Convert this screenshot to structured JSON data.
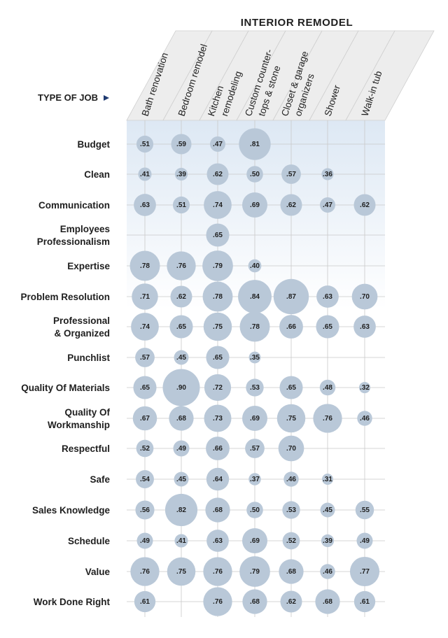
{
  "chart_data": {
    "type": "bubble-matrix",
    "title": "INTERIOR REMODEL",
    "row_axis_label": "TYPE OF JOB",
    "columns": [
      [
        "Bath renovation"
      ],
      [
        "Bedroom remodel"
      ],
      [
        "Kitchen",
        "remodeling"
      ],
      [
        "Custom counter-",
        "tops & stone"
      ],
      [
        "Closet & garage",
        "organizers"
      ],
      [
        "Shower"
      ],
      [
        "Walk-in tub"
      ]
    ],
    "rows": [
      [
        "Budget"
      ],
      [
        "Clean"
      ],
      [
        "Communication"
      ],
      [
        "Employees",
        "Professionalism"
      ],
      [
        "Expertise"
      ],
      [
        "Problem Resolution"
      ],
      [
        "Professional",
        "& Organized"
      ],
      [
        "Punchlist"
      ],
      [
        "Quality Of Materials"
      ],
      [
        "Quality Of",
        "Workmanship"
      ],
      [
        "Respectful"
      ],
      [
        "Safe"
      ],
      [
        "Sales Knowledge"
      ],
      [
        "Schedule"
      ],
      [
        "Value"
      ],
      [
        "Work Done Right"
      ]
    ],
    "values": [
      [
        0.51,
        0.59,
        0.47,
        0.81,
        null,
        null,
        null
      ],
      [
        0.41,
        0.39,
        0.62,
        0.5,
        0.57,
        0.36,
        null
      ],
      [
        0.63,
        0.51,
        0.74,
        0.69,
        0.62,
        0.47,
        0.62
      ],
      [
        null,
        null,
        0.65,
        null,
        null,
        null,
        null
      ],
      [
        0.78,
        0.76,
        0.79,
        0.4,
        null,
        null,
        null
      ],
      [
        0.71,
        0.62,
        0.78,
        0.84,
        0.87,
        0.63,
        0.7
      ],
      [
        0.74,
        0.65,
        0.75,
        0.78,
        0.66,
        0.65,
        0.63
      ],
      [
        0.57,
        0.45,
        0.65,
        0.35,
        null,
        null,
        null
      ],
      [
        0.65,
        0.9,
        0.72,
        0.53,
        0.65,
        0.48,
        0.32
      ],
      [
        0.67,
        0.68,
        0.73,
        0.69,
        0.75,
        0.76,
        0.46
      ],
      [
        0.52,
        0.49,
        0.66,
        0.57,
        0.7,
        null,
        null
      ],
      [
        0.54,
        0.45,
        0.64,
        0.37,
        0.46,
        0.31,
        null
      ],
      [
        0.56,
        0.82,
        0.68,
        0.5,
        0.53,
        0.45,
        0.55
      ],
      [
        0.49,
        0.41,
        0.63,
        0.69,
        0.52,
        0.39,
        0.49
      ],
      [
        0.76,
        0.75,
        0.76,
        0.79,
        0.68,
        0.46,
        0.77
      ],
      [
        0.61,
        null,
        0.76,
        0.68,
        0.62,
        0.68,
        0.61
      ]
    ],
    "colors": {
      "bubble": "#b9c8d8",
      "header_band": "#ededed",
      "gradient": "#dde8f4",
      "grid": "#c9c9c9",
      "arrow": "#1f3a70"
    }
  }
}
